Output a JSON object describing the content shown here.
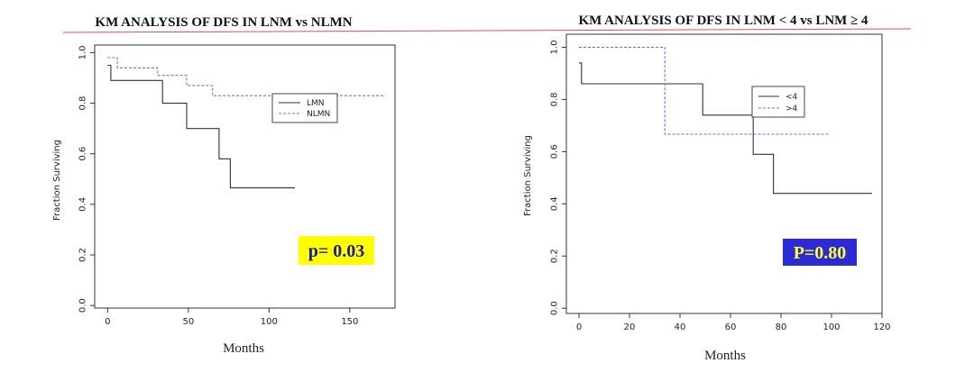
{
  "chart_data": [
    {
      "type": "line",
      "title": "KM ANALYSIS OF DFS IN LNM vs NLMN",
      "xlabel": "Months",
      "ylabel": "Fraction Surviving",
      "xlim": [
        -8,
        178
      ],
      "ylim": [
        -0.01,
        1.03
      ],
      "xticks": [
        0,
        50,
        100,
        150
      ],
      "yticks": [
        "0.0",
        "0.2",
        "0.4",
        "0.6",
        "0.8",
        "1.0"
      ],
      "legend": {
        "placement": "top-right",
        "entries": [
          "LMN",
          "NLMN"
        ]
      },
      "annotation": {
        "text": "p= 0.03",
        "background": "#ffff00",
        "color": "#1a1aa6"
      },
      "series": [
        {
          "name": "LMN",
          "color": "#333333",
          "dash": false,
          "x": [
            0,
            2,
            2,
            34,
            34,
            49,
            49,
            69,
            69,
            76,
            76,
            116
          ],
          "y": [
            0.95,
            0.95,
            0.89,
            0.89,
            0.8,
            0.8,
            0.7,
            0.7,
            0.58,
            0.58,
            0.465,
            0.465
          ]
        },
        {
          "name": "NLMN",
          "color": "#6b6bff",
          "dash": true,
          "x": [
            0,
            6,
            6,
            31,
            31,
            49,
            49,
            65,
            65,
            172
          ],
          "y": [
            0.98,
            0.98,
            0.94,
            0.94,
            0.91,
            0.91,
            0.87,
            0.87,
            0.83,
            0.83
          ]
        }
      ]
    },
    {
      "type": "line",
      "title": "KM ANALYSIS OF DFS IN LNM < 4 vs LNM ≥ 4",
      "xlabel": "Months",
      "ylabel": "Fraction Surviving",
      "xlim": [
        -5,
        120
      ],
      "ylim": [
        -0.02,
        1.05
      ],
      "xticks": [
        0,
        20,
        40,
        60,
        80,
        100,
        120
      ],
      "yticks": [
        "0.0",
        "0.2",
        "0.4",
        "0.6",
        "0.8",
        "1.0"
      ],
      "legend": {
        "placement": "top-right",
        "entries": [
          "<4",
          ">4"
        ]
      },
      "annotation": {
        "text": "P=0.80",
        "background": "#2b2bd6",
        "color": "#ffff33"
      },
      "series": [
        {
          "name": "<4",
          "color": "#333333",
          "dash": false,
          "x": [
            0,
            1,
            1,
            49,
            49,
            69,
            69,
            77,
            77,
            116
          ],
          "y": [
            0.94,
            0.94,
            0.86,
            0.86,
            0.74,
            0.74,
            0.59,
            0.59,
            0.44,
            0.44
          ]
        },
        {
          "name": ">4",
          "color": "#6b6bff",
          "dash": true,
          "x": [
            0,
            34,
            34,
            99
          ],
          "y": [
            1.0,
            1.0,
            0.667,
            0.667
          ]
        }
      ]
    }
  ]
}
